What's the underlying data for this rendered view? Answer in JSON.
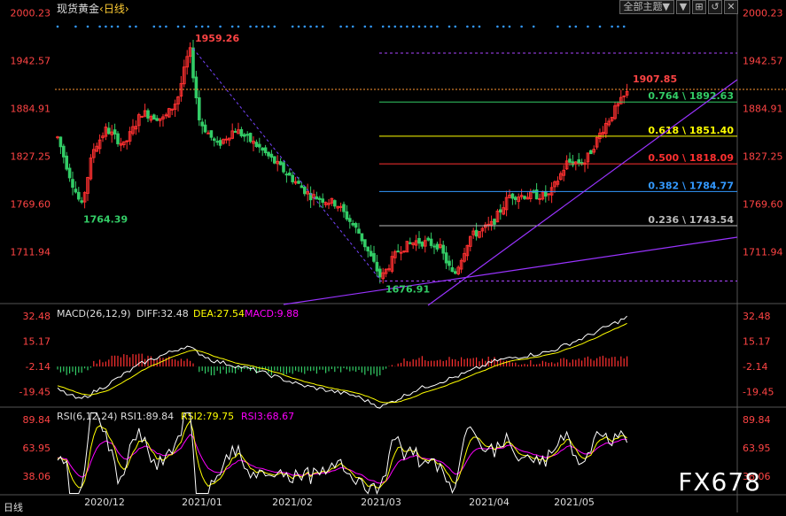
{
  "header": {
    "title": "现货黄金",
    "period": "‹日线›"
  },
  "toolbar": {
    "dropdown": "全部主题▼",
    "buttons": [
      "▼",
      "⊞",
      "↺",
      "✕"
    ]
  },
  "status_label": "日线",
  "watermark": "FX678",
  "colors": {
    "up": "#ff3030",
    "down": "#33cc66",
    "ma": "#ffffff",
    "macd_diff": "#ffffff",
    "macd_dea": "#ffff00",
    "rsi3": "#ff00ff",
    "axis_label": "#ff4444",
    "bg": "#000000",
    "grid": "#444444"
  },
  "chart_data": [
    {
      "type": "candlestick",
      "name": "main",
      "y_ticks": [
        "2000.23",
        "1942.57",
        "1884.91",
        "1827.25",
        "1769.60",
        "1711.94"
      ],
      "ylim": [
        1655,
        2007
      ],
      "x_labels": [
        "2020/12",
        "2021/01",
        "2021/02",
        "2021/03",
        "2021/04",
        "2021/05"
      ],
      "annotations": [
        {
          "label": "1959.26",
          "value": 1959.26,
          "color": "#ff4444"
        },
        {
          "label": "1764.39",
          "value": 1764.39,
          "color": "#33cc66"
        },
        {
          "label": "1676.91",
          "value": 1676.91,
          "color": "#33cc66"
        },
        {
          "label": "1907.85",
          "value": 1907.85,
          "color": "#ff4444"
        }
      ],
      "fibonacci": [
        {
          "label": "0.764 \\ 1892.63",
          "value": 1892.63,
          "color": "#33cc66"
        },
        {
          "label": "0.618 \\ 1851.40",
          "value": 1851.4,
          "color": "#ffff00"
        },
        {
          "label": "0.500 \\ 1818.09",
          "value": 1818.09,
          "color": "#ff3030"
        },
        {
          "label": "0.382 \\ 1784.77",
          "value": 1784.77,
          "color": "#3399ff"
        },
        {
          "label": "0.236 \\ 1743.54",
          "value": 1743.54,
          "color": "#bbbbbb"
        }
      ]
    },
    {
      "type": "macd",
      "name": "MACD",
      "legend": {
        "label": "MACD(26,12,9)",
        "diff": "DIFF:32.48",
        "dea": "DEA:27.54",
        "macd": "MACD:9.88"
      },
      "y_ticks": [
        "32.48",
        "15.17",
        "-2.14",
        "-19.45"
      ],
      "ylim": [
        -30,
        38
      ]
    },
    {
      "type": "line",
      "name": "RSI",
      "legend": {
        "label": "RSI(6,12,24)",
        "rsi1": "RSI1:89.84",
        "rsi2": "RSI2:79.75",
        "rsi3": "RSI3:68.67"
      },
      "y_ticks": [
        "89.84",
        "63.95",
        "38.06"
      ],
      "ylim": [
        20,
        98
      ]
    }
  ]
}
